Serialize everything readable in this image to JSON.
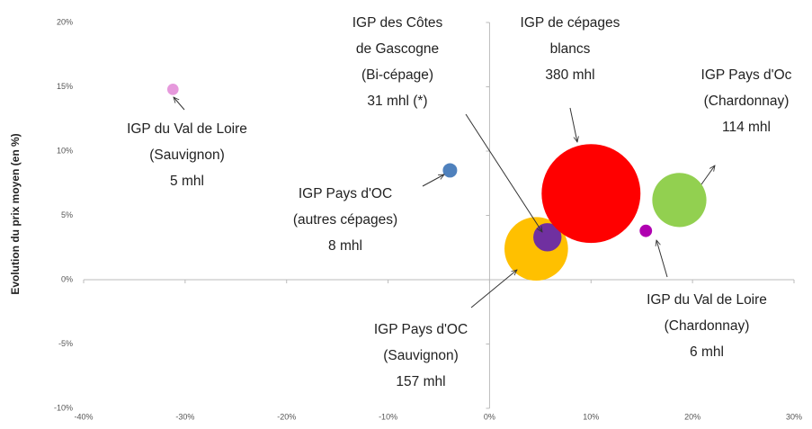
{
  "chart_data": {
    "type": "bubble",
    "ylabel": "Evolution du prix moyen (en %)",
    "xlim": [
      -40,
      30
    ],
    "xticks": [
      {
        "value": -40,
        "label": "-40%"
      },
      {
        "value": -30,
        "label": "-30%"
      },
      {
        "value": -20,
        "label": "-20%"
      },
      {
        "value": -10,
        "label": "-10%"
      },
      {
        "value": 0,
        "label": "0%"
      },
      {
        "value": 10,
        "label": "10%"
      },
      {
        "value": 20,
        "label": "20%"
      },
      {
        "value": 30,
        "label": "30%"
      }
    ],
    "ylim": [
      -10,
      20
    ],
    "yticks": [
      {
        "value": -10,
        "label": "-10%"
      },
      {
        "value": -5,
        "label": "-5%"
      },
      {
        "value": 0,
        "label": "0%"
      },
      {
        "value": 5,
        "label": "5%"
      },
      {
        "value": 10,
        "label": "10%"
      },
      {
        "value": 15,
        "label": "15%"
      },
      {
        "value": 20,
        "label": "20%"
      }
    ],
    "series": [
      {
        "name": [
          "IGP du Val de Loire",
          "(Sauvignon)"
        ],
        "color": "#e699dc",
        "x": [
          -31.2
        ],
        "values": [
          14.8
        ],
        "sizes": [
          5
        ],
        "size_labels": [
          "5 mhl"
        ]
      },
      {
        "name": [
          "IGP Pays d'OC",
          "(autres cépages)"
        ],
        "color": "#4f81bd",
        "x": [
          -3.9
        ],
        "values": [
          8.5
        ],
        "sizes": [
          8
        ],
        "size_labels": [
          "8 mhl"
        ]
      },
      {
        "name": [
          "IGP Pays d'OC",
          "(Sauvignon)"
        ],
        "color": "#ffc000",
        "x": [
          4.6
        ],
        "values": [
          2.4
        ],
        "sizes": [
          157
        ],
        "size_labels": [
          "157 mhl"
        ]
      },
      {
        "name": [
          "IGP des Côtes",
          "de Gascogne",
          "(Bi-cépage)"
        ],
        "color": "#7030a0",
        "x": [
          5.7
        ],
        "values": [
          3.3
        ],
        "sizes": [
          31
        ],
        "size_labels": [
          "31 mhl (*)"
        ]
      },
      {
        "name": [
          "IGP de cépages",
          "blancs"
        ],
        "color": "#ff0000",
        "x": [
          10.0
        ],
        "values": [
          6.7
        ],
        "sizes": [
          380
        ],
        "size_labels": [
          "380 mhl"
        ]
      },
      {
        "name": [
          "IGP Pays d'Oc",
          "(Chardonnay)"
        ],
        "color": "#92d050",
        "x": [
          18.7
        ],
        "values": [
          6.2
        ],
        "sizes": [
          114
        ],
        "size_labels": [
          "114 mhl"
        ]
      },
      {
        "name": [
          "IGP du Val de Loire",
          "(Chardonnay)"
        ],
        "color": "#b000b0",
        "x": [
          15.4
        ],
        "values": [
          3.8
        ],
        "sizes": [
          6
        ],
        "size_labels": [
          "6 mhl"
        ]
      }
    ]
  }
}
